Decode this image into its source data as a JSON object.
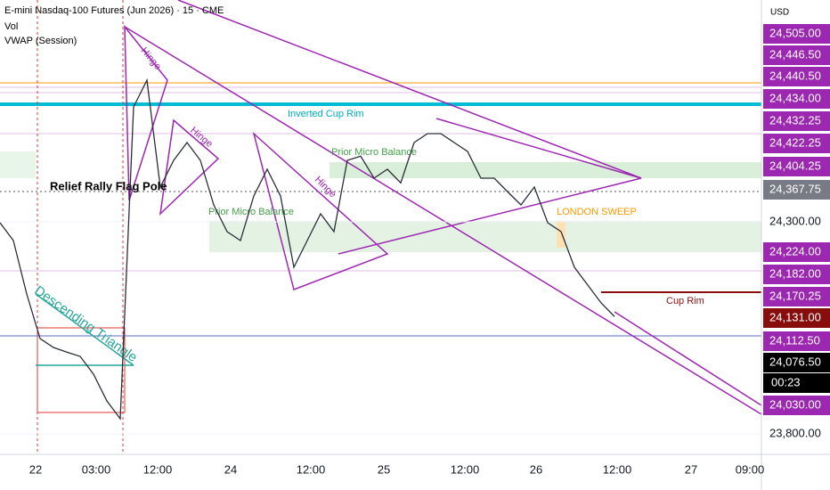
{
  "chart_data": {
    "type": "line",
    "title": "E-mini Nasdaq-100 Futures (Jun 2026) · 15 · CME",
    "indicators": [
      "Vol",
      "VWAP (Session)"
    ],
    "currency": "USD",
    "x_labels": [
      "22",
      "03:00",
      "12:00",
      "24",
      "12:00",
      "25",
      "12:00",
      "26",
      "12:00",
      "27",
      "09:00"
    ],
    "series": [
      {
        "name": "Price",
        "color": "#2a2e39",
        "values": [
          24298,
          24256,
          24130,
          24025,
          24004,
          23993,
          23983,
          23941,
          23878,
          23836,
          24571,
          24634,
          24382,
          24445,
          24487,
          24445,
          24340,
          24277,
          24256,
          24361,
          24424,
          24361,
          24193,
          24256,
          24319,
          24277,
          24445,
          24455,
          24403,
          24424,
          24392,
          24487,
          24508,
          24508,
          24487,
          24466,
          24403,
          24403,
          24371,
          24340,
          24382,
          24298,
          24277,
          24193,
          24151,
          24109,
          24077
        ]
      }
    ],
    "ylim": [
      23752,
      24823
    ],
    "yticks": [
      {
        "value": 24300,
        "label": "24,300.00"
      },
      {
        "value": 23800,
        "label": "23,800.00"
      }
    ],
    "price_labels": [
      {
        "value": 24505,
        "label": "24,505.00",
        "color": "#9c27b0"
      },
      {
        "value": 24446.5,
        "label": "24,446.50",
        "color": "#9c27b0"
      },
      {
        "value": 24440.5,
        "label": "24,440.50",
        "color": "#9c27b0"
      },
      {
        "value": 24434,
        "label": "24,434.00",
        "color": "#9c27b0"
      },
      {
        "value": 24432.25,
        "label": "24,432.25",
        "color": "#9c27b0"
      },
      {
        "value": 24422.25,
        "label": "24,422.25",
        "color": "#9c27b0"
      },
      {
        "value": 24404.25,
        "label": "24,404.25",
        "color": "#9c27b0"
      },
      {
        "value": 24367.75,
        "label": "24,367.75",
        "color": "#787b86"
      },
      {
        "value": 24224,
        "label": "24,224.00",
        "color": "#9c27b0"
      },
      {
        "value": 24182,
        "label": "24,182.00",
        "color": "#9c27b0"
      },
      {
        "value": 24170.25,
        "label": "24,170.25",
        "color": "#9c27b0"
      },
      {
        "value": 24131,
        "label": "24,131.00",
        "color": "#880e0e"
      },
      {
        "value": 24112.5,
        "label": "24,112.50",
        "color": "#9c27b0"
      },
      {
        "value": 24076.5,
        "label": "24,076.50",
        "color": "#000000"
      },
      {
        "value": 24030,
        "label": "24,030.00",
        "color": "#9c27b0"
      }
    ],
    "countdown": "00:23",
    "annotations": [
      "Hinge",
      "Hinge",
      "Hinge",
      "Inverted Cup Rim",
      "Prior Micro Balance",
      "Prior Micro Balance",
      "Relief Rally Flag Pole",
      "Descending Triangle",
      "LONDON SWEEP",
      "Cup Rim"
    ]
  }
}
